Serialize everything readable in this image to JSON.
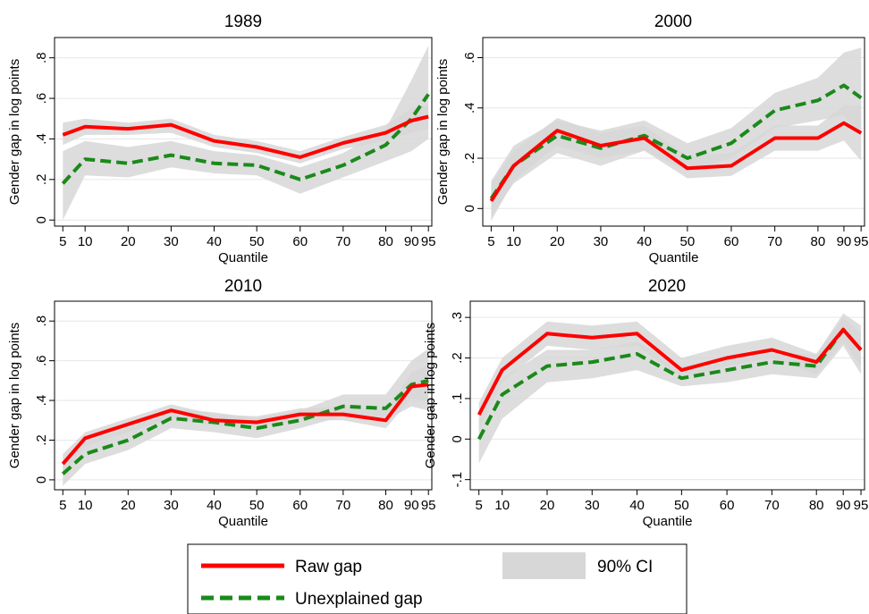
{
  "colors": {
    "raw": "#ff0000",
    "unexplained": "#1a8a1a",
    "ci": "#d7d7d7",
    "title_2020": "#1f3a6a"
  },
  "legend": {
    "raw": "Raw gap",
    "unexplained": "Unexplained gap",
    "ci": "90% CI"
  },
  "chart_data": [
    {
      "type": "line",
      "title": "1989",
      "xlabel": "Quantile",
      "ylabel": "Gender gap in log points",
      "x": [
        5,
        10,
        20,
        30,
        40,
        50,
        60,
        70,
        80,
        90,
        95
      ],
      "x_tick_labels": [
        "5",
        "10",
        "20",
        "30",
        "40",
        "50",
        "60",
        "70",
        "80",
        "90",
        "95"
      ],
      "ylim": [
        -0.03,
        0.9
      ],
      "y_ticks": [
        0,
        0.2,
        0.4,
        0.6,
        0.8
      ],
      "y_tick_labels": [
        "0",
        ".2",
        ".4",
        ".6",
        ".8"
      ],
      "series": [
        {
          "name": "Raw gap",
          "values": [
            0.42,
            0.46,
            0.45,
            0.47,
            0.39,
            0.36,
            0.31,
            0.38,
            0.43,
            0.49,
            0.51
          ],
          "ci_lower": [
            0.37,
            0.42,
            0.42,
            0.43,
            0.36,
            0.33,
            0.28,
            0.35,
            0.39,
            0.43,
            0.45
          ],
          "ci_upper": [
            0.48,
            0.5,
            0.48,
            0.5,
            0.42,
            0.39,
            0.34,
            0.41,
            0.47,
            0.55,
            0.57
          ]
        },
        {
          "name": "Unexplained gap",
          "values": [
            0.18,
            0.3,
            0.28,
            0.32,
            0.28,
            0.27,
            0.2,
            0.27,
            0.37,
            0.5,
            0.62
          ],
          "ci_lower": [
            0.0,
            0.22,
            0.21,
            0.26,
            0.23,
            0.22,
            0.13,
            0.21,
            0.29,
            0.34,
            0.4
          ],
          "ci_upper": [
            0.34,
            0.39,
            0.36,
            0.39,
            0.34,
            0.32,
            0.26,
            0.33,
            0.45,
            0.69,
            0.86
          ]
        }
      ]
    },
    {
      "type": "line",
      "title": "2000",
      "xlabel": "Quantile",
      "ylabel": "Gender gap in log points",
      "x": [
        5,
        10,
        20,
        30,
        40,
        50,
        60,
        70,
        80,
        90,
        95
      ],
      "x_tick_labels": [
        "5",
        "10",
        "20",
        "30",
        "40",
        "50",
        "60",
        "70",
        "80",
        "90",
        "95"
      ],
      "ylim": [
        -0.07,
        0.68
      ],
      "y_ticks": [
        0,
        0.2,
        0.4,
        0.6
      ],
      "y_tick_labels": [
        "0",
        ".2",
        ".4",
        ".6"
      ],
      "series": [
        {
          "name": "Raw gap",
          "values": [
            0.03,
            0.17,
            0.31,
            0.25,
            0.28,
            0.16,
            0.17,
            0.28,
            0.28,
            0.34,
            0.3
          ],
          "ci_lower": [
            -0.05,
            0.11,
            0.25,
            0.2,
            0.23,
            0.12,
            0.13,
            0.23,
            0.23,
            0.27,
            0.19
          ],
          "ci_upper": [
            0.1,
            0.23,
            0.36,
            0.3,
            0.33,
            0.21,
            0.22,
            0.33,
            0.33,
            0.41,
            0.41
          ]
        },
        {
          "name": "Unexplained gap",
          "values": [
            0.04,
            0.17,
            0.29,
            0.24,
            0.29,
            0.2,
            0.26,
            0.39,
            0.43,
            0.49,
            0.44
          ],
          "ci_lower": [
            -0.03,
            0.1,
            0.22,
            0.17,
            0.23,
            0.15,
            0.2,
            0.32,
            0.35,
            0.37,
            0.29
          ],
          "ci_upper": [
            0.11,
            0.25,
            0.35,
            0.31,
            0.35,
            0.26,
            0.32,
            0.46,
            0.52,
            0.62,
            0.64
          ]
        }
      ]
    },
    {
      "type": "line",
      "title": "2010",
      "xlabel": "Quantile",
      "ylabel": "Gender gap in log points",
      "x": [
        5,
        10,
        20,
        30,
        40,
        50,
        60,
        70,
        80,
        90,
        95
      ],
      "x_tick_labels": [
        "5",
        "10",
        "20",
        "30",
        "40",
        "50",
        "60",
        "70",
        "80",
        "90",
        "95"
      ],
      "ylim": [
        -0.05,
        0.9
      ],
      "y_ticks": [
        0,
        0.2,
        0.4,
        0.6,
        0.8
      ],
      "y_tick_labels": [
        "0",
        ".2",
        ".4",
        ".6",
        ".8"
      ],
      "series": [
        {
          "name": "Raw gap",
          "values": [
            0.08,
            0.21,
            0.28,
            0.35,
            0.3,
            0.29,
            0.33,
            0.33,
            0.3,
            0.47,
            0.48
          ],
          "ci_lower": [
            0.03,
            0.17,
            0.24,
            0.31,
            0.27,
            0.26,
            0.3,
            0.3,
            0.26,
            0.41,
            0.39
          ],
          "ci_upper": [
            0.13,
            0.24,
            0.31,
            0.38,
            0.33,
            0.32,
            0.36,
            0.37,
            0.35,
            0.54,
            0.58
          ]
        },
        {
          "name": "Unexplained gap",
          "values": [
            0.03,
            0.13,
            0.2,
            0.31,
            0.29,
            0.26,
            0.3,
            0.37,
            0.36,
            0.48,
            0.5
          ],
          "ci_lower": [
            -0.03,
            0.08,
            0.15,
            0.26,
            0.24,
            0.21,
            0.26,
            0.32,
            0.3,
            0.37,
            0.35
          ],
          "ci_upper": [
            0.1,
            0.19,
            0.26,
            0.36,
            0.34,
            0.31,
            0.35,
            0.43,
            0.43,
            0.6,
            0.66
          ]
        }
      ]
    },
    {
      "type": "line",
      "title": "2020",
      "xlabel": "Quantile",
      "ylabel": "Gender gap in log points",
      "x": [
        5,
        10,
        20,
        30,
        40,
        50,
        60,
        70,
        80,
        90,
        95
      ],
      "x_tick_labels": [
        "5",
        "10",
        "20",
        "30",
        "40",
        "50",
        "60",
        "70",
        "80",
        "90",
        "95"
      ],
      "ylim": [
        -0.125,
        0.34
      ],
      "y_ticks": [
        -0.1,
        0,
        0.1,
        0.2,
        0.3
      ],
      "y_tick_labels": [
        "-.1",
        "0",
        ".1",
        ".2",
        ".3"
      ],
      "series": [
        {
          "name": "Raw gap",
          "values": [
            0.06,
            0.17,
            0.26,
            0.25,
            0.26,
            0.17,
            0.2,
            0.22,
            0.19,
            0.27,
            0.22
          ],
          "ci_lower": [
            0.02,
            0.14,
            0.23,
            0.22,
            0.23,
            0.15,
            0.18,
            0.2,
            0.16,
            0.24,
            0.18
          ],
          "ci_upper": [
            0.09,
            0.2,
            0.29,
            0.28,
            0.29,
            0.2,
            0.23,
            0.25,
            0.21,
            0.3,
            0.26
          ]
        },
        {
          "name": "Unexplained gap",
          "values": [
            0.0,
            0.11,
            0.18,
            0.19,
            0.21,
            0.15,
            0.17,
            0.19,
            0.18,
            0.27,
            0.22
          ],
          "ci_lower": [
            -0.06,
            0.05,
            0.14,
            0.15,
            0.17,
            0.13,
            0.14,
            0.16,
            0.15,
            0.23,
            0.16
          ],
          "ci_upper": [
            0.05,
            0.15,
            0.22,
            0.22,
            0.24,
            0.18,
            0.2,
            0.21,
            0.21,
            0.31,
            0.28
          ]
        }
      ]
    }
  ]
}
